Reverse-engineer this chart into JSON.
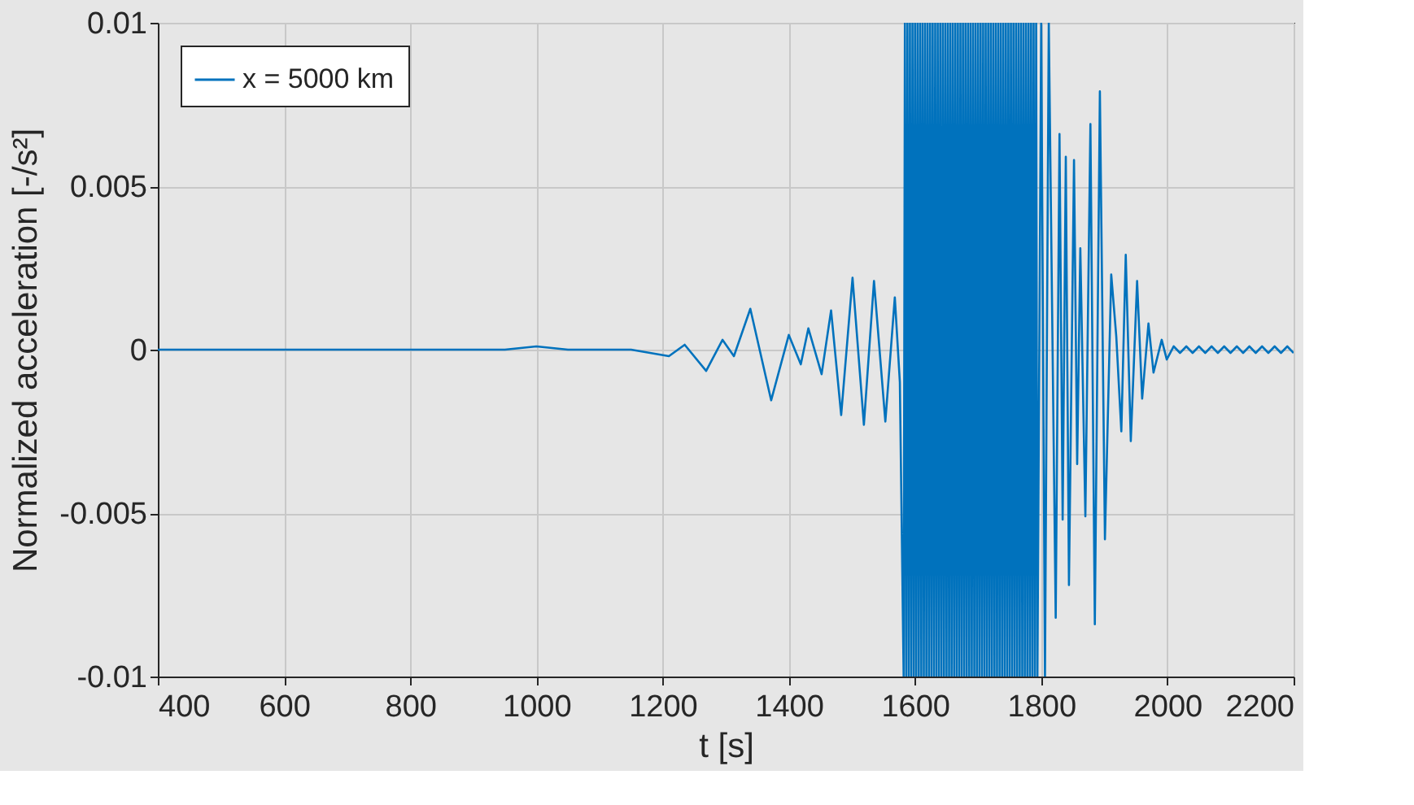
{
  "chart_data": {
    "type": "line",
    "xlabel": "t [s]",
    "ylabel": "Normalized acceleration [-/s²]",
    "xlim": [
      400,
      2200
    ],
    "xticks": [
      400,
      600,
      800,
      1000,
      1200,
      1400,
      1600,
      1800,
      2000,
      2200
    ],
    "ylim": [
      -0.01,
      0.01
    ],
    "yticks": [
      -0.01,
      -0.005,
      0,
      0.005,
      0.01
    ],
    "grid": true,
    "legend": "top left",
    "x": [
      400,
      500,
      600,
      700,
      800,
      900,
      950,
      1000,
      1050,
      1100,
      1150,
      1210,
      1235,
      1269,
      1295,
      1313,
      1339,
      1372,
      1400,
      1419,
      1431,
      1452,
      1467,
      1483,
      1501,
      1519,
      1535,
      1553,
      1568,
      1576,
      1582,
      1584,
      1586,
      1588,
      1590,
      1592,
      1594,
      1596,
      1598,
      1600,
      1602,
      1604,
      1606,
      1608,
      1610,
      1612,
      1614,
      1616,
      1618,
      1620,
      1622,
      1624,
      1626,
      1628,
      1630,
      1632,
      1634,
      1636,
      1638,
      1640,
      1642,
      1644,
      1646,
      1648,
      1650,
      1652,
      1654,
      1656,
      1658,
      1660,
      1662,
      1664,
      1666,
      1668,
      1670,
      1672,
      1674,
      1676,
      1678,
      1680,
      1682,
      1684,
      1686,
      1688,
      1690,
      1692,
      1694,
      1696,
      1698,
      1700,
      1702,
      1704,
      1706,
      1708,
      1710,
      1712,
      1714,
      1716,
      1718,
      1720,
      1722,
      1724,
      1726,
      1728,
      1730,
      1732,
      1734,
      1736,
      1738,
      1740,
      1742,
      1744,
      1746,
      1748,
      1750,
      1752,
      1754,
      1756,
      1758,
      1760,
      1762,
      1764,
      1766,
      1768,
      1770,
      1772,
      1774,
      1776,
      1778,
      1780,
      1782,
      1784,
      1786,
      1788,
      1790,
      1792,
      1794,
      1800,
      1806,
      1812,
      1823,
      1829,
      1834,
      1839,
      1844,
      1852,
      1857,
      1862,
      1870,
      1878,
      1885,
      1893,
      1901,
      1911,
      1919,
      1927,
      1934,
      1942,
      1952,
      1960,
      1970,
      1978,
      1991,
      1999,
      2010,
      2020,
      2030,
      2040,
      2050,
      2060,
      2070,
      2080,
      2090,
      2100,
      2110,
      2120,
      2130,
      2140,
      2150,
      2160,
      2170,
      2180,
      2190,
      2200
    ],
    "series": [
      {
        "name": "x = 5000 km",
        "color": "#0072bd",
        "values": [
          0,
          0,
          0,
          0,
          0,
          0,
          0,
          0.0001,
          0,
          0,
          0,
          -0.0002,
          0.00015,
          -0.00065,
          0.0003,
          -0.0002,
          0.00125,
          -0.00155,
          0.00045,
          -0.00045,
          0.00065,
          -0.00075,
          0.0012,
          -0.002,
          0.0022,
          -0.0023,
          0.0021,
          -0.0022,
          0.0016,
          -0.001,
          -0.01,
          0.01,
          -0.01,
          0.01,
          -0.01,
          0.01,
          -0.01,
          0.01,
          -0.01,
          0.01,
          -0.01,
          0.01,
          -0.01,
          0.01,
          -0.01,
          0.01,
          -0.01,
          0.01,
          -0.01,
          0.01,
          -0.01,
          0.01,
          -0.01,
          0.01,
          -0.01,
          0.01,
          -0.01,
          0.01,
          -0.01,
          0.01,
          -0.01,
          0.01,
          -0.01,
          0.01,
          -0.01,
          0.01,
          -0.01,
          0.01,
          -0.01,
          0.01,
          -0.01,
          0.01,
          -0.01,
          0.01,
          -0.01,
          0.01,
          -0.01,
          0.01,
          -0.01,
          0.01,
          -0.01,
          0.01,
          -0.01,
          0.01,
          -0.01,
          0.01,
          -0.01,
          0.01,
          -0.01,
          0.01,
          -0.01,
          0.01,
          -0.01,
          0.01,
          -0.01,
          0.01,
          -0.01,
          0.01,
          -0.01,
          0.01,
          -0.01,
          0.01,
          -0.01,
          0.01,
          -0.01,
          0.01,
          -0.01,
          0.01,
          -0.01,
          0.01,
          -0.01,
          0.01,
          -0.01,
          0.01,
          -0.01,
          0.01,
          -0.01,
          0.01,
          -0.01,
          0.01,
          -0.01,
          0.01,
          -0.01,
          0.01,
          -0.01,
          0.01,
          -0.01,
          0.01,
          -0.01,
          0.01,
          -0.01,
          0.01,
          -0.01,
          0.01,
          -0.01,
          0.01,
          -0.01,
          0.01,
          -0.01,
          0.01,
          -0.0082,
          0.0066,
          -0.0052,
          0.0059,
          -0.0072,
          0.0058,
          -0.0035,
          0.0031,
          -0.0051,
          0.0069,
          -0.0084,
          0.0079,
          -0.0058,
          0.0023,
          0.0004,
          -0.0025,
          0.0029,
          -0.0028,
          0.0021,
          -0.0015,
          0.0008,
          -0.0007,
          0.0003,
          -0.0003,
          0.0001,
          -0.0001,
          0.0001,
          -0.0001,
          0.0001,
          -0.0001,
          0.0001,
          -0.0001,
          0.0001,
          -0.0001,
          0.0001,
          -0.0001,
          0.0001,
          -0.0001,
          0.0001,
          -0.0001,
          0.0001,
          -0.0001,
          0.0001,
          -0.0001
        ]
      }
    ]
  }
}
